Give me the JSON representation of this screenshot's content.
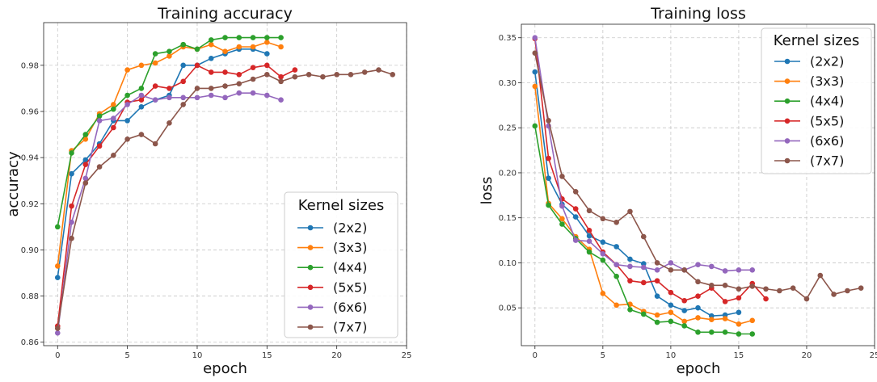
{
  "colors": {
    "(2x2)": "#1f77b4",
    "(3x3)": "#ff7f0e",
    "(4x4)": "#2ca02c",
    "(5x5)": "#d62728",
    "(6x6)": "#9467bd",
    "(7x7)": "#8c564b"
  },
  "chart_data": [
    {
      "type": "line",
      "title": "Training accuracy",
      "xlabel": "epoch",
      "ylabel": "accuracy",
      "xlim": [
        -1,
        25
      ],
      "ylim": [
        0.8585,
        0.9985
      ],
      "xticks": [
        0,
        5,
        10,
        15,
        20,
        25
      ],
      "yticks": [
        0.86,
        0.88,
        0.9,
        0.92,
        0.94,
        0.96,
        0.98
      ],
      "ytick_labels": [
        "0.86",
        "0.88",
        "0.90",
        "0.92",
        "0.94",
        "0.96",
        "0.98"
      ],
      "grid": true,
      "legend": {
        "title": "Kernel sizes",
        "position": "lower-right"
      },
      "series": [
        {
          "name": "(2x2)",
          "values": [
            0.888,
            0.933,
            0.939,
            0.946,
            0.956,
            0.956,
            0.962,
            0.965,
            0.967,
            0.98,
            0.98,
            0.983,
            0.985,
            0.987,
            0.987,
            0.985
          ]
        },
        {
          "name": "(3x3)",
          "values": [
            0.893,
            0.943,
            0.948,
            0.959,
            0.963,
            0.978,
            0.98,
            0.981,
            0.984,
            0.988,
            0.987,
            0.989,
            0.986,
            0.988,
            0.988,
            0.99,
            0.988
          ]
        },
        {
          "name": "(4x4)",
          "values": [
            0.91,
            0.942,
            0.95,
            0.958,
            0.961,
            0.967,
            0.97,
            0.985,
            0.986,
            0.989,
            0.987,
            0.991,
            0.992,
            0.992,
            0.992,
            0.992,
            0.992
          ]
        },
        {
          "name": "(5x5)",
          "values": [
            0.867,
            0.919,
            0.937,
            0.945,
            0.953,
            0.964,
            0.965,
            0.971,
            0.97,
            0.973,
            0.98,
            0.977,
            0.977,
            0.976,
            0.979,
            0.98,
            0.975,
            0.978
          ]
        },
        {
          "name": "(6x6)",
          "values": [
            0.864,
            0.912,
            0.931,
            0.956,
            0.957,
            0.963,
            0.967,
            0.965,
            0.966,
            0.966,
            0.966,
            0.967,
            0.966,
            0.968,
            0.968,
            0.967,
            0.965
          ]
        },
        {
          "name": "(7x7)",
          "values": [
            0.866,
            0.905,
            0.929,
            0.936,
            0.941,
            0.948,
            0.95,
            0.946,
            0.955,
            0.963,
            0.97,
            0.97,
            0.971,
            0.972,
            0.974,
            0.976,
            0.973,
            0.975,
            0.976,
            0.975,
            0.976,
            0.976,
            0.977,
            0.978,
            0.976
          ]
        }
      ]
    },
    {
      "type": "line",
      "title": "Training loss",
      "xlabel": "epoch",
      "ylabel": "loss",
      "xlim": [
        -1,
        25
      ],
      "ylim": [
        0.008,
        0.365
      ],
      "xticks": [
        0,
        5,
        10,
        15,
        20,
        25
      ],
      "yticks": [
        0.05,
        0.1,
        0.15,
        0.2,
        0.25,
        0.3,
        0.35
      ],
      "ytick_labels": [
        "0.05",
        "0.10",
        "0.15",
        "0.20",
        "0.25",
        "0.30",
        "0.35"
      ],
      "grid": true,
      "legend": {
        "title": "Kernel sizes",
        "position": "upper-right"
      },
      "series": [
        {
          "name": "(2x2)",
          "values": [
            0.312,
            0.194,
            0.165,
            0.151,
            0.13,
            0.123,
            0.118,
            0.104,
            0.099,
            0.063,
            0.053,
            0.047,
            0.05,
            0.041,
            0.042,
            0.045
          ]
        },
        {
          "name": "(3x3)",
          "values": [
            0.296,
            0.166,
            0.149,
            0.129,
            0.115,
            0.066,
            0.053,
            0.054,
            0.046,
            0.042,
            0.045,
            0.035,
            0.039,
            0.037,
            0.038,
            0.032,
            0.036
          ]
        },
        {
          "name": "(4x4)",
          "values": [
            0.252,
            0.164,
            0.143,
            0.127,
            0.112,
            0.103,
            0.085,
            0.048,
            0.043,
            0.034,
            0.035,
            0.03,
            0.023,
            0.023,
            0.023,
            0.021,
            0.021
          ]
        },
        {
          "name": "(5x5)",
          "values": [
            0.349,
            0.216,
            0.171,
            0.16,
            0.136,
            0.112,
            0.098,
            0.08,
            0.078,
            0.08,
            0.067,
            0.058,
            0.063,
            0.072,
            0.057,
            0.061,
            0.077,
            0.06
          ]
        },
        {
          "name": "(6x6)",
          "values": [
            0.35,
            0.252,
            0.163,
            0.125,
            0.124,
            0.11,
            0.098,
            0.096,
            0.095,
            0.092,
            0.1,
            0.092,
            0.098,
            0.096,
            0.091,
            0.092,
            0.092
          ]
        },
        {
          "name": "(7x7)",
          "values": [
            0.333,
            0.258,
            0.196,
            0.179,
            0.158,
            0.149,
            0.145,
            0.157,
            0.129,
            0.1,
            0.092,
            0.092,
            0.079,
            0.075,
            0.075,
            0.071,
            0.074,
            0.071,
            0.069,
            0.072,
            0.06,
            0.086,
            0.065,
            0.069,
            0.072
          ]
        }
      ]
    }
  ]
}
